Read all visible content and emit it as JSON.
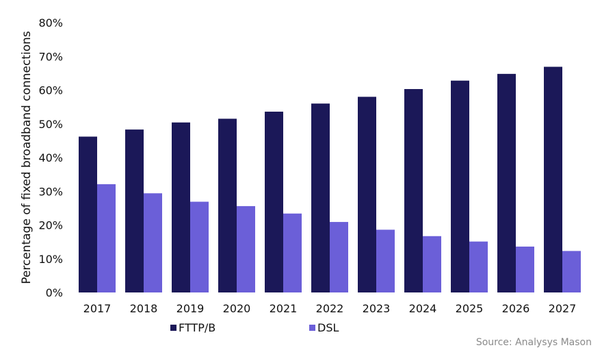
{
  "chart_data": {
    "type": "bar",
    "title": "",
    "xlabel": "",
    "ylabel": "Percentage of fixed broadband connections",
    "categories": [
      "2017",
      "2018",
      "2019",
      "2020",
      "2021",
      "2022",
      "2023",
      "2024",
      "2025",
      "2026",
      "2027"
    ],
    "series": [
      {
        "name": "FTTP/B",
        "color": "#1b1858",
        "values": [
          46.2,
          48.3,
          50.4,
          51.5,
          53.6,
          56.0,
          58.0,
          60.3,
          62.8,
          64.8,
          66.9
        ]
      },
      {
        "name": "DSL",
        "color": "#6b5fd8",
        "values": [
          32.1,
          29.4,
          26.9,
          25.6,
          23.4,
          20.9,
          18.6,
          16.7,
          15.1,
          13.6,
          12.3
        ]
      }
    ],
    "ylim": [
      0,
      80
    ],
    "yticks": [
      0,
      10,
      20,
      30,
      40,
      50,
      60,
      70,
      80
    ],
    "ytick_labels": [
      "0%",
      "10%",
      "20%",
      "30%",
      "40%",
      "50%",
      "60%",
      "70%",
      "80%"
    ],
    "grid": false,
    "legend": "bottom",
    "source": "Source: Analysys Mason"
  }
}
